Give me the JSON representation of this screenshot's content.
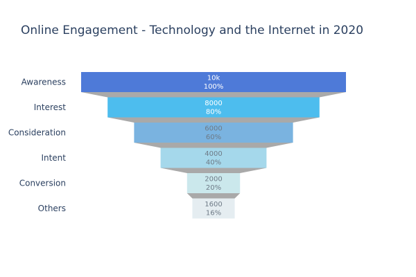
{
  "chart_data": {
    "type": "funnel",
    "title": "Online Engagement - Technology and the Internet in 2020",
    "categories": [
      "Awareness",
      "Interest",
      "Consideration",
      "Intent",
      "Conversion",
      "Others"
    ],
    "values": [
      10000,
      8000,
      6000,
      4000,
      2000,
      1600
    ],
    "value_labels": [
      "10k",
      "8000",
      "6000",
      "4000",
      "2000",
      "1600"
    ],
    "percent_labels": [
      "100%",
      "80%",
      "60%",
      "40%",
      "20%",
      "16%"
    ],
    "colors": [
      "#4e7ad8",
      "#4dbdee",
      "#7ab3e0",
      "#a5d8eb",
      "#cbe8ec",
      "#e5edf1"
    ],
    "text_colors": [
      "#ffffff",
      "#ffffff",
      "#6e7a86",
      "#6e7a86",
      "#6e7a86",
      "#6e7a86"
    ],
    "connector_color": "#a9a9a9"
  }
}
